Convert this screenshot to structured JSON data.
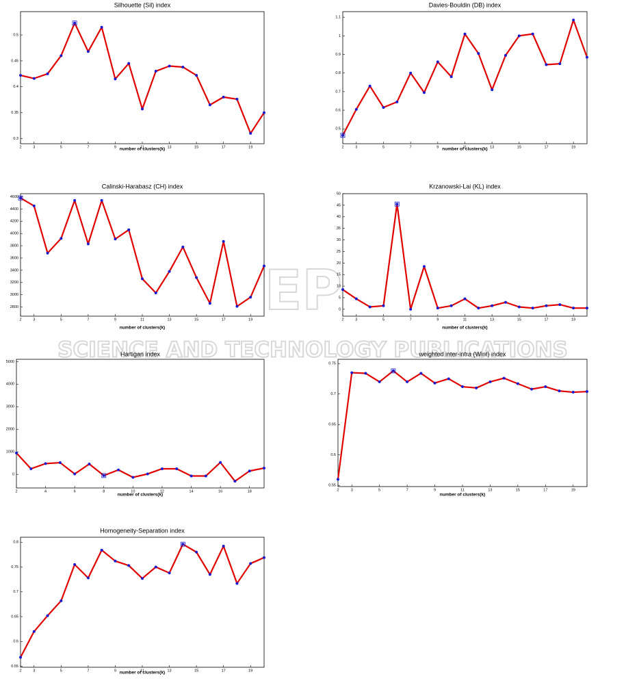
{
  "chart_data": [
    {
      "type": "line",
      "title": "Silhouette (Sil) index",
      "xlabel": "number of clusters(k)",
      "x": [
        2,
        3,
        4,
        5,
        6,
        7,
        8,
        9,
        10,
        11,
        12,
        13,
        14,
        15,
        16,
        17,
        18,
        19,
        20
      ],
      "values": [
        0.422,
        0.416,
        0.425,
        0.46,
        0.523,
        0.468,
        0.515,
        0.415,
        0.445,
        0.357,
        0.43,
        0.44,
        0.438,
        0.422,
        0.365,
        0.38,
        0.376,
        0.31,
        0.35
      ],
      "color": "#e00000",
      "marker_color": "#1a1ad0",
      "optimal_x": 6,
      "xlim": [
        2,
        20
      ],
      "xticks": [
        2,
        3,
        5,
        7,
        9,
        11,
        13,
        15,
        17,
        19
      ],
      "ylim": [
        0.29,
        0.545
      ],
      "yticks": [
        0.3,
        0.35,
        0.4,
        0.45,
        0.5
      ]
    },
    {
      "type": "line",
      "title": "Davies-Bouldin (DB) index",
      "xlabel": "number of clusters(k)",
      "x": [
        2,
        3,
        4,
        5,
        6,
        7,
        8,
        9,
        10,
        11,
        12,
        13,
        14,
        15,
        16,
        17,
        18,
        19,
        20
      ],
      "values": [
        0.465,
        0.605,
        0.73,
        0.615,
        0.645,
        0.8,
        0.695,
        0.86,
        0.78,
        1.01,
        0.905,
        0.71,
        0.895,
        1.0,
        1.01,
        0.845,
        0.85,
        1.085,
        0.885
      ],
      "color": "#e00000",
      "marker_color": "#1a1ad0",
      "optimal_x": 2,
      "xlim": [
        2,
        20
      ],
      "xticks": [
        2,
        3,
        5,
        7,
        9,
        11,
        13,
        15,
        17,
        19
      ],
      "ylim": [
        0.42,
        1.13
      ],
      "yticks": [
        0.5,
        0.6,
        0.7,
        0.8,
        0.9,
        1,
        1.1
      ]
    },
    {
      "type": "line",
      "title": "Calinski-Harabasz (CH) index",
      "xlabel": "number of clusters(k)",
      "x": [
        2,
        3,
        4,
        5,
        6,
        7,
        8,
        9,
        10,
        11,
        12,
        13,
        14,
        15,
        16,
        17,
        18,
        19,
        20
      ],
      "values": [
        4580,
        4450,
        3680,
        3920,
        4540,
        3830,
        4540,
        3910,
        4060,
        3260,
        3030,
        3380,
        3780,
        3280,
        2860,
        3870,
        2810,
        2960,
        3470
      ],
      "color": "#e00000",
      "marker_color": "#1a1ad0",
      "optimal_x": 2,
      "xlim": [
        2,
        20
      ],
      "xticks": [
        2,
        3,
        5,
        7,
        9,
        11,
        13,
        15,
        17,
        19
      ],
      "ylim": [
        2650,
        4650
      ],
      "yticks": [
        2800,
        3000,
        3200,
        3400,
        3600,
        3800,
        4000,
        4200,
        4400,
        4600
      ]
    },
    {
      "type": "line",
      "title": "Krzanowski-Lai (KL) index",
      "xlabel": "number of clusters(k)",
      "x": [
        2,
        3,
        4,
        5,
        6,
        7,
        8,
        9,
        10,
        11,
        12,
        13,
        14,
        15,
        16,
        17,
        18,
        19,
        20
      ],
      "values": [
        8.5,
        4.5,
        1,
        1.5,
        45.5,
        0,
        18.5,
        0.5,
        1.5,
        4.5,
        0.5,
        1.5,
        3,
        1,
        0.5,
        1.5,
        2,
        0.5,
        0.5
      ],
      "color": "#e00000",
      "marker_color": "#1a1ad0",
      "optimal_x": 6,
      "xlim": [
        2,
        20
      ],
      "xticks": [
        2,
        3,
        5,
        7,
        9,
        11,
        13,
        15,
        17,
        19
      ],
      "ylim": [
        -3,
        50
      ],
      "yticks": [
        0,
        5,
        10,
        15,
        20,
        25,
        30,
        35,
        40,
        45,
        50
      ]
    },
    {
      "type": "line",
      "title": "Hartigan index",
      "xlabel": "number of clusters(k)",
      "x": [
        2,
        3,
        4,
        5,
        6,
        7,
        8,
        9,
        10,
        11,
        12,
        13,
        14,
        15,
        16,
        17,
        18,
        19
      ],
      "values": [
        950,
        250,
        480,
        520,
        20,
        460,
        -50,
        200,
        -130,
        20,
        250,
        250,
        -70,
        -70,
        530,
        -300,
        150,
        280
      ],
      "color": "#e00000",
      "marker_color": "#1a1ad0",
      "optimal_x": 8,
      "xlim": [
        2,
        19
      ],
      "xticks": [
        2,
        4,
        6,
        8,
        10,
        12,
        14,
        16,
        18
      ],
      "ylim": [
        -600,
        5100
      ],
      "yticks": [
        0,
        1000,
        2000,
        3000,
        4000,
        5000
      ]
    },
    {
      "type": "line",
      "title": "weighted inter-intra (Wint) index",
      "xlabel": "number of clusters(k)",
      "x": [
        2,
        3,
        4,
        5,
        6,
        7,
        8,
        9,
        10,
        11,
        12,
        13,
        14,
        15,
        16,
        17,
        18,
        19,
        20
      ],
      "values": [
        0.56,
        0.735,
        0.734,
        0.72,
        0.738,
        0.72,
        0.734,
        0.718,
        0.725,
        0.712,
        0.71,
        0.72,
        0.726,
        0.717,
        0.708,
        0.712,
        0.705,
        0.703,
        0.704
      ],
      "color": "#e00000",
      "marker_color": "#1a1ad0",
      "optimal_x": 6,
      "xlim": [
        2,
        20
      ],
      "xticks": [
        2,
        3,
        5,
        7,
        9,
        11,
        13,
        15,
        17,
        19
      ],
      "ylim": [
        0.548,
        0.757
      ],
      "yticks": [
        0.55,
        0.6,
        0.65,
        0.7,
        0.75
      ]
    },
    {
      "type": "line",
      "title": "Homogeneity-Separation index",
      "xlabel": "number of clusters(k)",
      "x": [
        2,
        3,
        4,
        5,
        6,
        7,
        8,
        9,
        10,
        11,
        12,
        13,
        14,
        15,
        16,
        17,
        18,
        19,
        20
      ],
      "values": [
        0.568,
        0.62,
        0.652,
        0.682,
        0.755,
        0.728,
        0.784,
        0.762,
        0.753,
        0.727,
        0.75,
        0.738,
        0.796,
        0.78,
        0.735,
        0.792,
        0.717,
        0.757,
        0.769
      ],
      "color": "#e00000",
      "marker_color": "#1a1ad0",
      "optimal_x": 14,
      "xlim": [
        2,
        20
      ],
      "xticks": [
        2,
        3,
        5,
        7,
        9,
        11,
        13,
        15,
        17,
        19
      ],
      "ylim": [
        0.548,
        0.81
      ],
      "yticks": [
        0.55,
        0.6,
        0.65,
        0.7,
        0.75,
        0.8
      ]
    }
  ],
  "watermark": {
    "brand": "SCITEPRESS",
    "tagline": "SCIENCE AND TECHNOLOGY PUBLICATIONS"
  }
}
